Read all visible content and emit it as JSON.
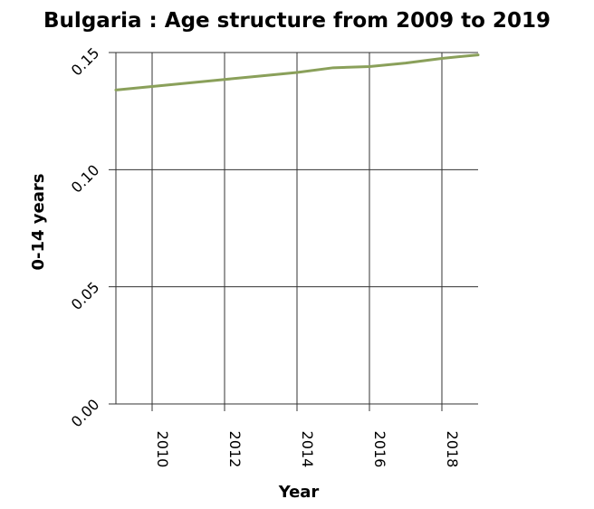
{
  "chart_data": {
    "type": "line",
    "title": "Bulgaria : Age structure from 2009 to 2019",
    "xlabel": "Year",
    "ylabel": "0-14 years",
    "x": [
      2009,
      2010,
      2011,
      2012,
      2013,
      2014,
      2015,
      2016,
      2017,
      2018,
      2019
    ],
    "series": [
      {
        "values": [
          0.134,
          0.1355,
          0.137,
          0.1385,
          0.14,
          0.1415,
          0.1435,
          0.144,
          0.1455,
          0.1475,
          0.149
        ],
        "color": "#8aa05a"
      }
    ],
    "xlim": [
      2009,
      2019
    ],
    "ylim": [
      0,
      0.15
    ],
    "xticks": [
      "2010",
      "2012",
      "2014",
      "2016",
      "2018"
    ],
    "yticks": [
      "0.00",
      "0.05",
      "0.10",
      "0.15"
    ],
    "grid": true
  }
}
